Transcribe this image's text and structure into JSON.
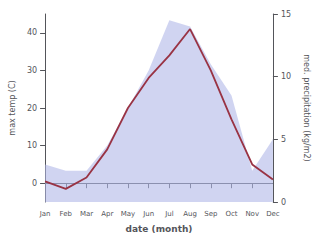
{
  "chart_data": {
    "type": "line",
    "xlabel": "date (month)",
    "ylabel": "max temp (C)",
    "y2label": "med. precipitation (kg/m2)",
    "categories": [
      "Jan",
      "Feb",
      "Mar",
      "Apr",
      "May",
      "Jun",
      "Jul",
      "Aug",
      "Sep",
      "Oct",
      "Nov",
      "Dec"
    ],
    "ylim": [
      -5,
      45
    ],
    "yticks": [
      0,
      10,
      20,
      30,
      40
    ],
    "y2lim": [
      0,
      15
    ],
    "y2ticks": [
      0,
      5,
      10,
      15
    ],
    "grid": false,
    "series": [
      {
        "type": "area",
        "axis": "y2",
        "color": "#b0b8e8",
        "values": [
          3.0,
          2.5,
          2.5,
          4.5,
          7.5,
          10.5,
          14.5,
          14.0,
          11.0,
          8.5,
          2.5,
          5.0
        ]
      },
      {
        "type": "line",
        "color": "#993344",
        "values": [
          0.5,
          -1.5,
          1.5,
          9,
          20,
          28,
          34,
          41,
          30,
          17,
          5,
          1
        ]
      }
    ]
  }
}
